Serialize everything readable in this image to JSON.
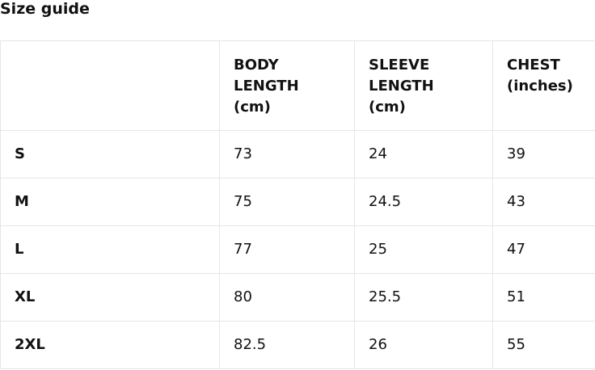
{
  "title": "Size guide",
  "table": {
    "headers": [
      "",
      "BODY LENGTH (cm)",
      "SLEEVE LENGTH (cm)",
      "CHEST (inches)"
    ],
    "header_lines": [
      [],
      [
        "BODY",
        "LENGTH",
        "(cm)"
      ],
      [
        "SLEEVE",
        "LENGTH",
        "(cm)"
      ],
      [
        "CHEST",
        "(inches)"
      ]
    ],
    "rows": [
      [
        "S",
        "73",
        "24",
        "39"
      ],
      [
        "M",
        "75",
        "24.5",
        "43"
      ],
      [
        "L",
        "77",
        "25",
        "47"
      ],
      [
        "XL",
        "80",
        "25.5",
        "51"
      ],
      [
        "2XL",
        "82.5",
        "26",
        "55"
      ]
    ]
  }
}
